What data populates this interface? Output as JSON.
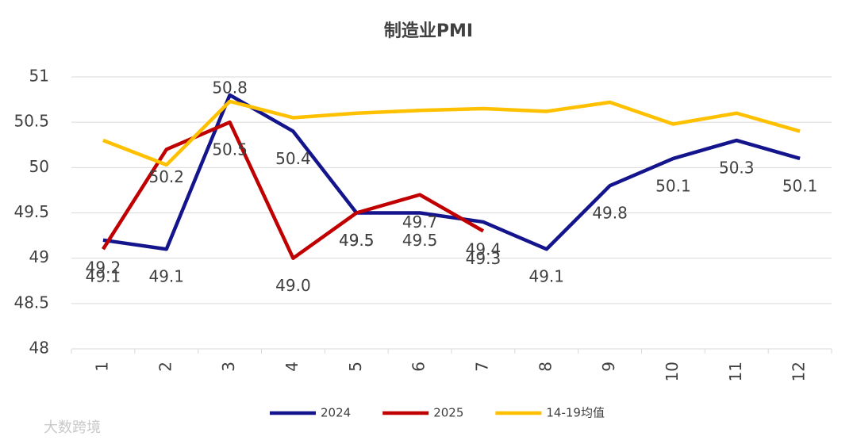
{
  "chart_data": {
    "type": "line",
    "title": "制造业PMI",
    "categories": [
      "1",
      "2",
      "3",
      "4",
      "5",
      "6",
      "7",
      "8",
      "9",
      "10",
      "11",
      "12"
    ],
    "series": [
      {
        "name": "2024",
        "color": "#14148c",
        "values": [
          49.2,
          49.1,
          50.8,
          50.4,
          49.5,
          49.5,
          49.4,
          49.1,
          49.8,
          50.1,
          50.3,
          50.1
        ],
        "value_labels": [
          "49.2",
          "49.1",
          "50.8",
          "50.4",
          "49.5",
          "49.5",
          "49.4",
          "49.1",
          "49.8",
          "50.1",
          "50.3",
          "50.1"
        ]
      },
      {
        "name": "2025",
        "color": "#c00000",
        "values": [
          49.1,
          50.2,
          50.5,
          49,
          49.5,
          49.7,
          49.3,
          null,
          null,
          null,
          null,
          null
        ],
        "value_labels": [
          "49.1",
          "50.2",
          "50.5",
          "49.0",
          "49.5",
          "49.7",
          "49.3",
          null,
          null,
          null,
          null,
          null
        ]
      },
      {
        "name": "14-19均值",
        "color": "#ffc000",
        "values": [
          50.3,
          50.03,
          50.73,
          50.55,
          50.6,
          50.63,
          50.65,
          50.62,
          50.72,
          50.48,
          50.6,
          50.4
        ]
      }
    ],
    "ylim": [
      48,
      51
    ],
    "yticks": [
      48,
      48.5,
      49,
      49.5,
      50,
      50.5,
      51
    ],
    "grid": true,
    "legend": "bottom",
    "watermark": "大数跨境"
  }
}
